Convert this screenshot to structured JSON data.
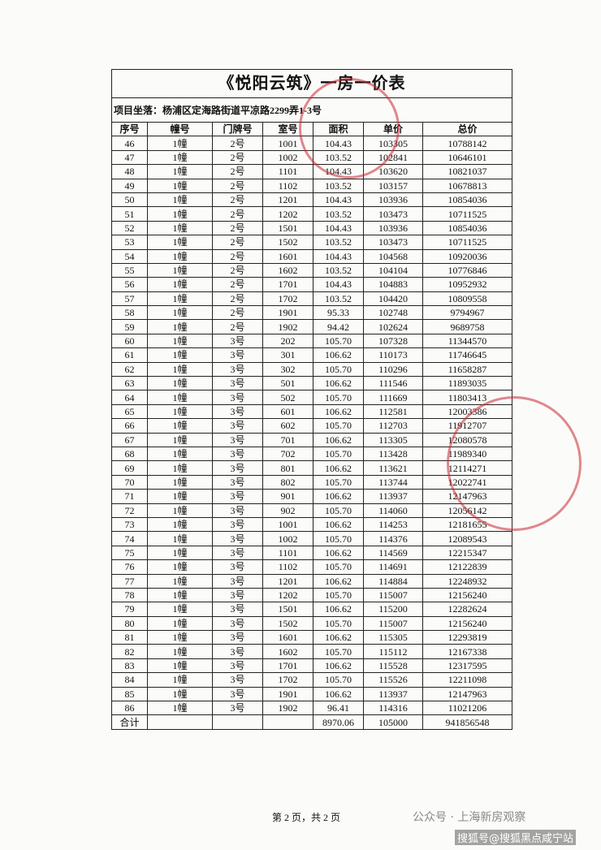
{
  "title": "《悦阳云筑》一房一价表",
  "address": "项目坐落：杨浦区定海路街道平凉路2299弄1-3号",
  "columns": [
    "序号",
    "幢号",
    "门牌号",
    "室号",
    "面积",
    "单价",
    "总价"
  ],
  "rows": [
    [
      "46",
      "1幢",
      "2号",
      "1001",
      "104.43",
      "103305",
      "10788142"
    ],
    [
      "47",
      "1幢",
      "2号",
      "1002",
      "103.52",
      "102841",
      "10646101"
    ],
    [
      "48",
      "1幢",
      "2号",
      "1101",
      "104.43",
      "103620",
      "10821037"
    ],
    [
      "49",
      "1幢",
      "2号",
      "1102",
      "103.52",
      "103157",
      "10678813"
    ],
    [
      "50",
      "1幢",
      "2号",
      "1201",
      "104.43",
      "103936",
      "10854036"
    ],
    [
      "51",
      "1幢",
      "2号",
      "1202",
      "103.52",
      "103473",
      "10711525"
    ],
    [
      "52",
      "1幢",
      "2号",
      "1501",
      "104.43",
      "103936",
      "10854036"
    ],
    [
      "53",
      "1幢",
      "2号",
      "1502",
      "103.52",
      "103473",
      "10711525"
    ],
    [
      "54",
      "1幢",
      "2号",
      "1601",
      "104.43",
      "104568",
      "10920036"
    ],
    [
      "55",
      "1幢",
      "2号",
      "1602",
      "103.52",
      "104104",
      "10776846"
    ],
    [
      "56",
      "1幢",
      "2号",
      "1701",
      "104.43",
      "104883",
      "10952932"
    ],
    [
      "57",
      "1幢",
      "2号",
      "1702",
      "103.52",
      "104420",
      "10809558"
    ],
    [
      "58",
      "1幢",
      "2号",
      "1901",
      "95.33",
      "102748",
      "9794967"
    ],
    [
      "59",
      "1幢",
      "2号",
      "1902",
      "94.42",
      "102624",
      "9689758"
    ],
    [
      "60",
      "1幢",
      "3号",
      "202",
      "105.70",
      "107328",
      "11344570"
    ],
    [
      "61",
      "1幢",
      "3号",
      "301",
      "106.62",
      "110173",
      "11746645"
    ],
    [
      "62",
      "1幢",
      "3号",
      "302",
      "105.70",
      "110296",
      "11658287"
    ],
    [
      "63",
      "1幢",
      "3号",
      "501",
      "106.62",
      "111546",
      "11893035"
    ],
    [
      "64",
      "1幢",
      "3号",
      "502",
      "105.70",
      "111669",
      "11803413"
    ],
    [
      "65",
      "1幢",
      "3号",
      "601",
      "106.62",
      "112581",
      "12003386"
    ],
    [
      "66",
      "1幢",
      "3号",
      "602",
      "105.70",
      "112703",
      "11912707"
    ],
    [
      "67",
      "1幢",
      "3号",
      "701",
      "106.62",
      "113305",
      "12080578"
    ],
    [
      "68",
      "1幢",
      "3号",
      "702",
      "105.70",
      "113428",
      "11989340"
    ],
    [
      "69",
      "1幢",
      "3号",
      "801",
      "106.62",
      "113621",
      "12114271"
    ],
    [
      "70",
      "1幢",
      "3号",
      "802",
      "105.70",
      "113744",
      "12022741"
    ],
    [
      "71",
      "1幢",
      "3号",
      "901",
      "106.62",
      "113937",
      "12147963"
    ],
    [
      "72",
      "1幢",
      "3号",
      "902",
      "105.70",
      "114060",
      "12056142"
    ],
    [
      "73",
      "1幢",
      "3号",
      "1001",
      "106.62",
      "114253",
      "12181655"
    ],
    [
      "74",
      "1幢",
      "3号",
      "1002",
      "105.70",
      "114376",
      "12089543"
    ],
    [
      "75",
      "1幢",
      "3号",
      "1101",
      "106.62",
      "114569",
      "12215347"
    ],
    [
      "76",
      "1幢",
      "3号",
      "1102",
      "105.70",
      "114691",
      "12122839"
    ],
    [
      "77",
      "1幢",
      "3号",
      "1201",
      "106.62",
      "114884",
      "12248932"
    ],
    [
      "78",
      "1幢",
      "3号",
      "1202",
      "105.70",
      "115007",
      "12156240"
    ],
    [
      "79",
      "1幢",
      "3号",
      "1501",
      "106.62",
      "115200",
      "12282624"
    ],
    [
      "80",
      "1幢",
      "3号",
      "1502",
      "105.70",
      "115007",
      "12156240"
    ],
    [
      "81",
      "1幢",
      "3号",
      "1601",
      "106.62",
      "115305",
      "12293819"
    ],
    [
      "82",
      "1幢",
      "3号",
      "1602",
      "105.70",
      "115112",
      "12167338"
    ],
    [
      "83",
      "1幢",
      "3号",
      "1701",
      "106.62",
      "115528",
      "12317595"
    ],
    [
      "84",
      "1幢",
      "3号",
      "1702",
      "105.70",
      "115526",
      "12211098"
    ],
    [
      "85",
      "1幢",
      "3号",
      "1901",
      "106.62",
      "113937",
      "12147963"
    ],
    [
      "86",
      "1幢",
      "3号",
      "1902",
      "96.41",
      "114316",
      "11021206"
    ]
  ],
  "total": {
    "label": "合计",
    "area": "8970.06",
    "price": "105000",
    "amount": "941856548"
  },
  "footer": "第 2 页，共 2 页",
  "watermark": {
    "wechat": "公众号 · 上海新房观察",
    "sohu": "搜狐号@搜狐黑点咸宁站"
  }
}
